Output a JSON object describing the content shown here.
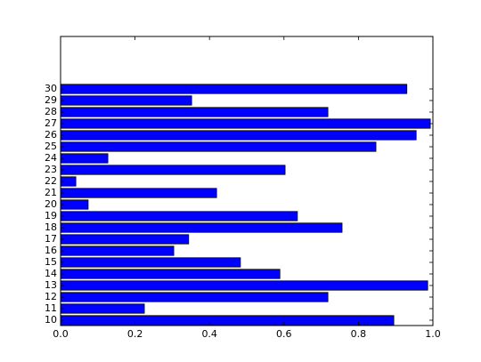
{
  "chart_data": {
    "type": "barh",
    "orientation": "horizontal",
    "categories": [
      "10",
      "11",
      "12",
      "13",
      "14",
      "15",
      "16",
      "17",
      "18",
      "19",
      "20",
      "21",
      "22",
      "23",
      "24",
      "25",
      "26",
      "27",
      "28",
      "29",
      "30"
    ],
    "values": [
      0.895,
      0.225,
      0.718,
      0.986,
      0.589,
      0.483,
      0.304,
      0.344,
      0.756,
      0.636,
      0.074,
      0.419,
      0.041,
      0.603,
      0.127,
      0.847,
      0.955,
      0.993,
      0.718,
      0.352,
      0.93
    ],
    "color": "#0000ff",
    "xlim": [
      0,
      1
    ],
    "xticks": [
      {
        "value": 0,
        "label": "0.0"
      },
      {
        "value": 0.2,
        "label": "0.2"
      },
      {
        "value": 0.4,
        "label": "0.4"
      },
      {
        "value": 0.6,
        "label": "0.6"
      },
      {
        "value": 0.8,
        "label": "0.8"
      },
      {
        "value": 1,
        "label": "1.0"
      }
    ]
  }
}
